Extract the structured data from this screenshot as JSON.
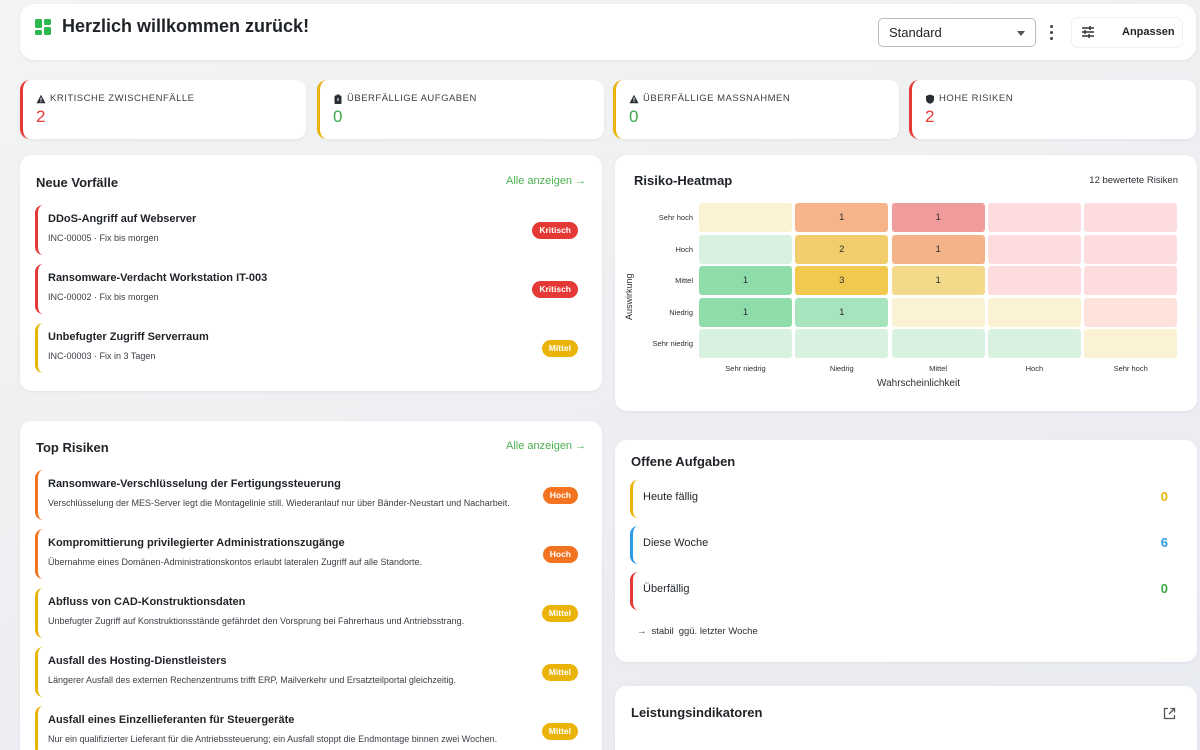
{
  "header": {
    "title": "Herzlich willkommen zurück!",
    "view_select": "Standard",
    "customize_label": "Anpassen"
  },
  "kpis": [
    {
      "label": "KRITISCHE ZWISCHENFÄLLE",
      "value": "2",
      "icon": "warning-icon",
      "accent": "#e53935",
      "value_color": "#e53935"
    },
    {
      "label": "ÜBERFÄLLIGE AUFGABEN",
      "value": "0",
      "icon": "clipboard-icon",
      "accent": "#eab308",
      "value_color": "#3aa84c"
    },
    {
      "label": "ÜBERFÄLLIGE MASSNAHMEN",
      "value": "0",
      "icon": "warning-icon",
      "accent": "#eab308",
      "value_color": "#3aa84c"
    },
    {
      "label": "HOHE RISIKEN",
      "value": "2",
      "icon": "shield-icon",
      "accent": "#e53935",
      "value_color": "#e53935"
    }
  ],
  "incidents": {
    "title": "Neue Vorfälle",
    "link": "Alle anzeigen →",
    "items": [
      {
        "title": "DDoS-Angriff auf Webserver",
        "sub": "INC-00005 · Fix bis morgen",
        "badge": "Kritisch",
        "color": "#e53935"
      },
      {
        "title": "Ransomware-Verdacht Workstation IT-003",
        "sub": "INC-00002 · Fix bis morgen",
        "badge": "Kritisch",
        "color": "#e53935"
      },
      {
        "title": "Unbefugter Zugriff Serverraum",
        "sub": "INC-00003 · Fix in 3 Tagen",
        "badge": "Mittel",
        "color": "#eab308"
      }
    ]
  },
  "heatmap": {
    "title": "Risiko-Heatmap",
    "summary": "12 bewertete Risiken",
    "y_axis_label": "Auswirkung",
    "x_axis_label": "Wahrscheinlichkeit",
    "rows": [
      "Sehr hoch",
      "Hoch",
      "Mittel",
      "Niedrig",
      "Sehr niedrig"
    ],
    "cols": [
      "Sehr niedrig",
      "Niedrig",
      "Mittel",
      "Hoch",
      "Sehr hoch"
    ],
    "counts": [
      [
        "",
        "1",
        "1",
        "",
        ""
      ],
      [
        "",
        "2",
        "1",
        "",
        ""
      ],
      [
        "1",
        "3",
        "1",
        "",
        ""
      ],
      [
        "1",
        "1",
        "",
        "",
        ""
      ],
      [
        "",
        "",
        "",
        "",
        ""
      ]
    ],
    "colors": [
      [
        "#fbf1d3",
        "#f7b38a",
        "#f19c9c",
        "#fcdcdc",
        "#fcdcdc"
      ],
      [
        "#d9f2e0",
        "#f2cd6c",
        "#f5b389",
        "#fcdcdc",
        "#fcdcdc"
      ],
      [
        "#8fdcab",
        "#f1c94e",
        "#f3da8a",
        "#fcdcdc",
        "#fcdcdc"
      ],
      [
        "#8fdcab",
        "#a7e4bd",
        "#fbf1d3",
        "#fbf1d3",
        "#fde3dc"
      ],
      [
        "#d9f2e0",
        "#d9f2e0",
        "#d9f2e0",
        "#d9f2e0",
        "#fbf1d3"
      ]
    ]
  },
  "top_risks": {
    "title": "Top Risiken",
    "link": "Alle anzeigen →",
    "items": [
      {
        "title": "Ransomware-Verschlüsselung der Fertigungssteuerung",
        "sub": "Verschlüsselung der MES-Server legt die Montagelinie still. Wiederanlauf nur über Bänder-Neustart und Nacharbeit.",
        "badge": "Hoch",
        "color": "#f37321"
      },
      {
        "title": "Kompromittierung privilegierter Administrationszugänge",
        "sub": "Übernahme eines Domänen-Administrationskontos erlaubt lateralen Zugriff auf alle Standorte.",
        "badge": "Hoch",
        "color": "#f37321"
      },
      {
        "title": "Abfluss von CAD-Konstruktionsdaten",
        "sub": "Unbefugter Zugriff auf Konstruktionsstände gefährdet den Vorsprung bei Fahrerhaus und Antriebsstrang.",
        "badge": "Mittel",
        "color": "#eab308"
      },
      {
        "title": "Ausfall des Hosting-Dienstleisters",
        "sub": "Längerer Ausfall des externen Rechenzentrums trifft ERP, Mailverkehr und Ersatzteilportal gleichzeitig.",
        "badge": "Mittel",
        "color": "#eab308"
      },
      {
        "title": "Ausfall eines Einzellieferanten für Steuergeräte",
        "sub": "Nur ein qualifizierter Lieferant für die Antriebssteuerung; ein Ausfall stoppt die Endmontage binnen zwei Wochen.",
        "badge": "Mittel",
        "color": "#eab308"
      }
    ]
  },
  "tasks": {
    "title": "Offene Aufgaben",
    "items": [
      {
        "label": "Heute fällig",
        "value": "0",
        "color": "#eab308",
        "value_color": "#eab308"
      },
      {
        "label": "Diese Woche",
        "value": "6",
        "color": "#2b9ae6",
        "value_color": "#2b9ae6"
      },
      {
        "label": "Überfällig",
        "value": "0",
        "color": "#e53935",
        "value_color": "#3aa84c"
      }
    ],
    "trend_arrow": "→",
    "trend_word": "stabil",
    "trend_suffix": "ggü. letzter Woche"
  },
  "kpi_section": {
    "title": "Leistungsindikatoren"
  }
}
